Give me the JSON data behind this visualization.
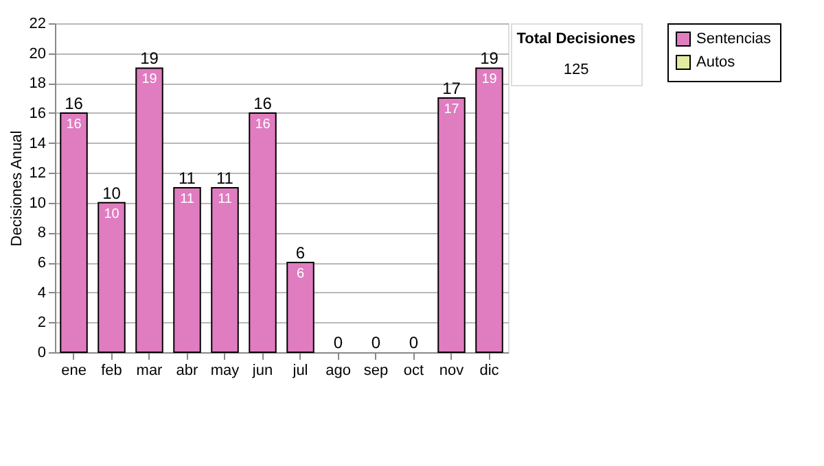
{
  "chart_data": {
    "type": "bar",
    "ylabel": "Decisiones Anual",
    "categories": [
      "ene",
      "feb",
      "mar",
      "abr",
      "may",
      "jun",
      "jul",
      "ago",
      "sep",
      "oct",
      "nov",
      "dic"
    ],
    "series": [
      {
        "name": "Sentencias",
        "color": "#e07cc0",
        "values": [
          16,
          10,
          19,
          11,
          11,
          16,
          6,
          0,
          0,
          0,
          17,
          19
        ],
        "value_labels": [
          "16",
          "10",
          "19",
          "11",
          "11",
          "16",
          "6",
          null,
          null,
          null,
          "17",
          "19"
        ]
      },
      {
        "name": "Autos",
        "color": "#e4eca0",
        "values": [
          0,
          0,
          0,
          0,
          0,
          0,
          0,
          0,
          0,
          0,
          0,
          0
        ]
      }
    ],
    "totals": [
      "16",
      "10",
      "19",
      "11",
      "11",
      "16",
      "6",
      "0",
      "0",
      "0",
      "17",
      "19"
    ],
    "ylim": [
      0,
      22
    ],
    "yticks": [
      0,
      2,
      4,
      6,
      8,
      10,
      12,
      14,
      16,
      18,
      20,
      22
    ],
    "grid": "y",
    "legend": "right",
    "annotations": [
      "Total Decisiones",
      "125"
    ]
  }
}
